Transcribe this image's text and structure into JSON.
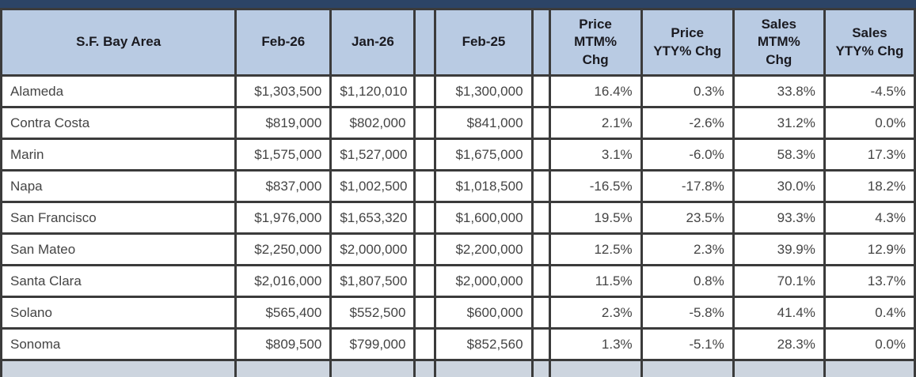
{
  "chart_data": {
    "type": "table",
    "columns": [
      "S.F. Bay Area",
      "Feb-26",
      "Jan-26",
      "",
      "Feb-25",
      "",
      "Price\nMTM%\nChg",
      "Price\nYTY% Chg",
      "Sales\nMTM%\nChg",
      "Sales\nYTY% Chg"
    ],
    "rows": [
      [
        "Alameda",
        "$1,303,500",
        "$1,120,010",
        "",
        "$1,300,000",
        "",
        "16.4%",
        "0.3%",
        "33.8%",
        "-4.5%"
      ],
      [
        "Contra Costa",
        "$819,000",
        "$802,000",
        "",
        "$841,000",
        "",
        "2.1%",
        "-2.6%",
        "31.2%",
        "0.0%"
      ],
      [
        "Marin",
        "$1,575,000",
        "$1,527,000",
        "",
        "$1,675,000",
        "",
        "3.1%",
        "-6.0%",
        "58.3%",
        "17.3%"
      ],
      [
        "Napa",
        "$837,000",
        "$1,002,500",
        "",
        "$1,018,500",
        "",
        "-16.5%",
        "-17.8%",
        "30.0%",
        "18.2%"
      ],
      [
        "San Francisco",
        "$1,976,000",
        "$1,653,320",
        "",
        "$1,600,000",
        "",
        "19.5%",
        "23.5%",
        "93.3%",
        "4.3%"
      ],
      [
        "San Mateo",
        "$2,250,000",
        "$2,000,000",
        "",
        "$2,200,000",
        "",
        "12.5%",
        "2.3%",
        "39.9%",
        "12.9%"
      ],
      [
        "Santa Clara",
        "$2,016,000",
        "$1,807,500",
        "",
        "$2,000,000",
        "",
        "11.5%",
        "0.8%",
        "70.1%",
        "13.7%"
      ],
      [
        "Solano",
        "$565,400",
        "$552,500",
        "",
        "$600,000",
        "",
        "2.3%",
        "-5.8%",
        "41.4%",
        "0.4%"
      ],
      [
        "Sonoma",
        "$809,500",
        "$799,000",
        "",
        "$852,560",
        "",
        "1.3%",
        "-5.1%",
        "28.3%",
        "0.0%"
      ]
    ]
  },
  "layout_hints": {
    "column_alignment": [
      "left",
      "right",
      "right",
      "none",
      "right",
      "none",
      "right",
      "right",
      "right",
      "right"
    ]
  },
  "colors": {
    "top_bar": "#2C4466",
    "header_bg": "#B9CBE3",
    "border": "#3B3B3B",
    "body_text": "#444444",
    "header_text": "#1A1A20",
    "next_row_bg": "#CDD5DF"
  }
}
